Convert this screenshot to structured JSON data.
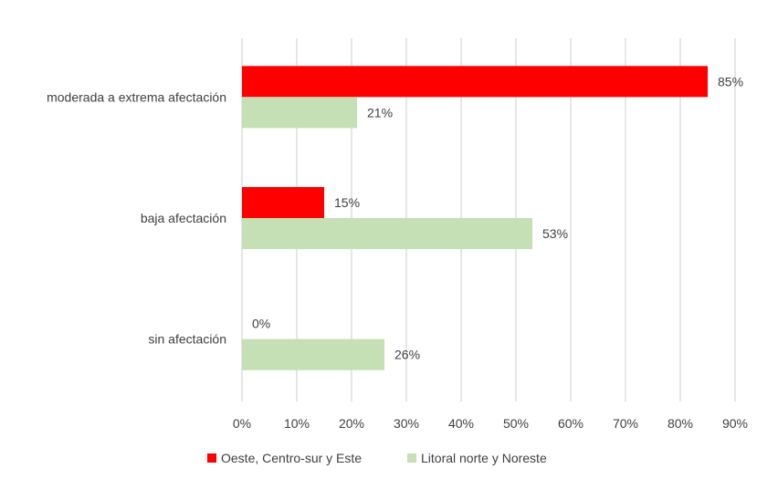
{
  "chart_data": {
    "type": "bar",
    "orientation": "horizontal",
    "title": "",
    "xlabel": "",
    "ylabel": "",
    "categories": [
      "moderada a extrema afectación",
      "baja afectación",
      "sin afectación"
    ],
    "series": [
      {
        "name": "Oeste, Centro-sur y Este",
        "color": "#FF0000",
        "values": [
          85,
          15,
          0
        ],
        "labels": [
          "85%",
          "15%",
          "0%"
        ]
      },
      {
        "name": "Litoral norte y Noreste",
        "color": "#C5E0B4",
        "values": [
          21,
          53,
          26
        ],
        "labels": [
          "21%",
          "53%",
          "26%"
        ]
      }
    ],
    "xlim": [
      0,
      90
    ],
    "xticks": [
      0,
      10,
      20,
      30,
      40,
      50,
      60,
      70,
      80,
      90
    ],
    "xtick_labels": [
      "0%",
      "10%",
      "20%",
      "30%",
      "40%",
      "50%",
      "60%",
      "70%",
      "80%",
      "90%"
    ],
    "grid": true,
    "legend_position": "bottom",
    "gridline_color": "#D9D9D9"
  }
}
